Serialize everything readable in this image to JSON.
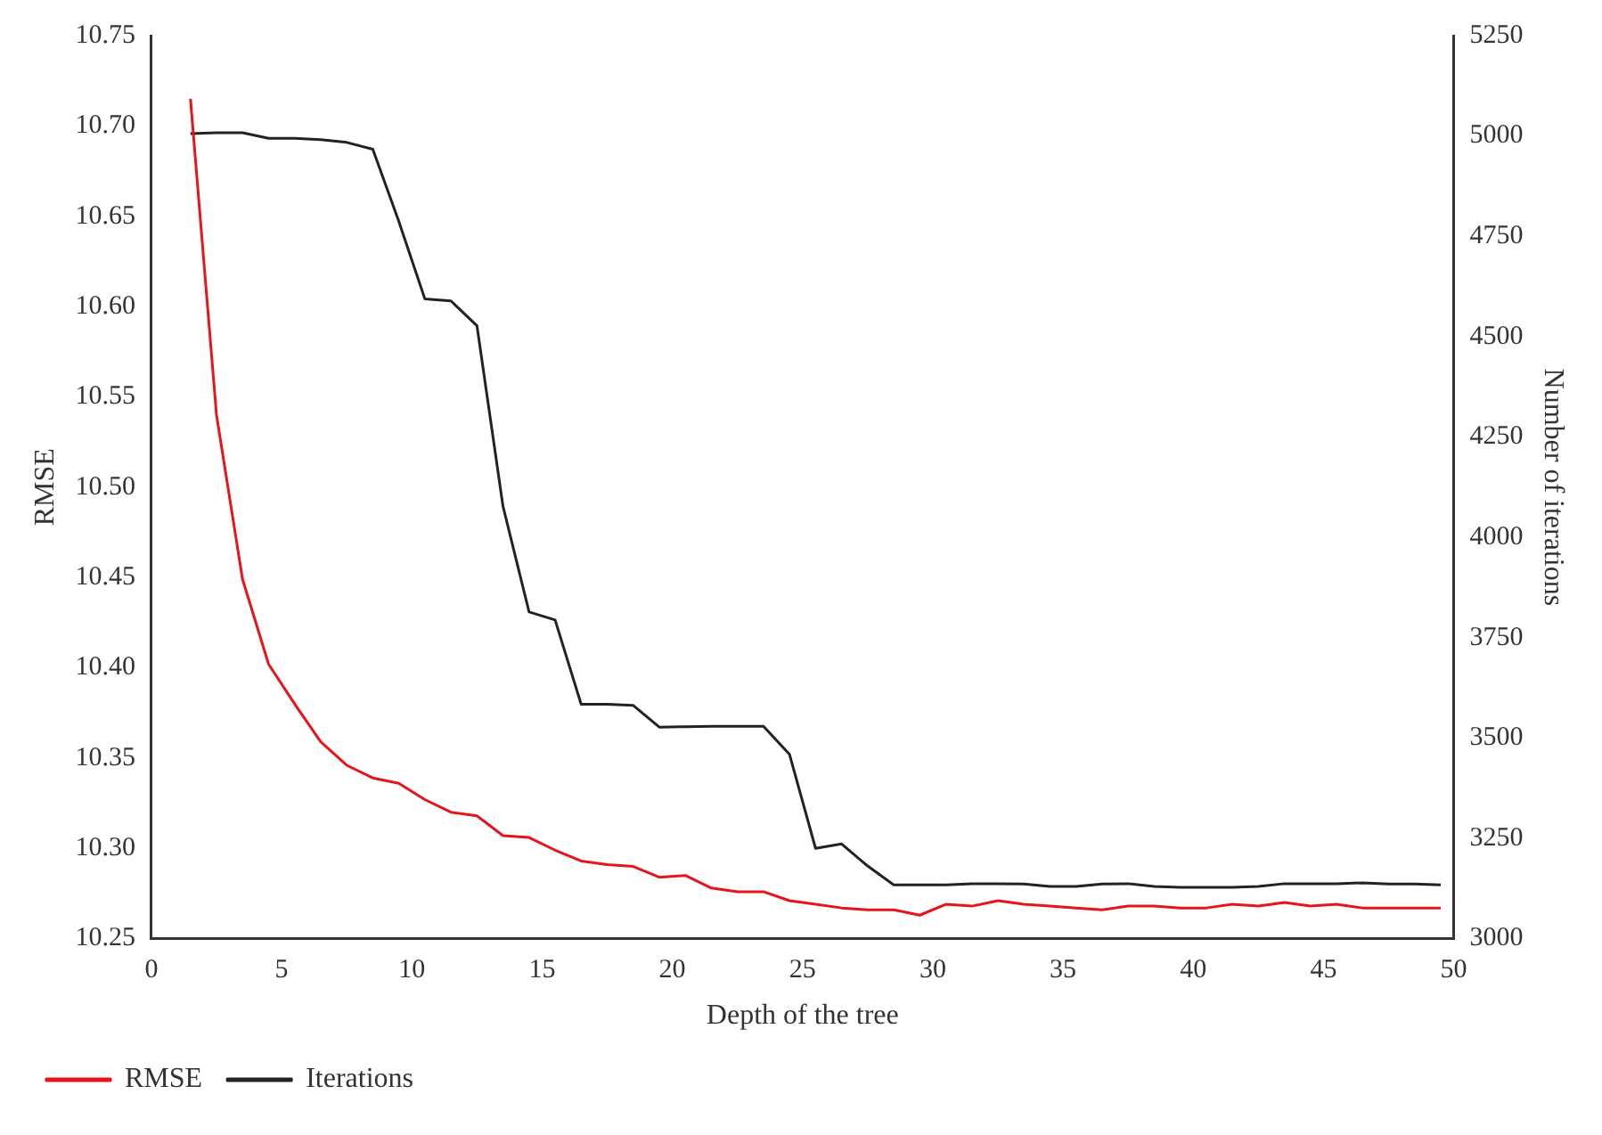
{
  "chart_data": {
    "type": "line",
    "xlabel": "Depth of the tree",
    "ylabel": "RMSE",
    "y2label": "Number of iterations",
    "x": [
      1.5,
      2.5,
      3.5,
      4.5,
      5.5,
      6.5,
      7.5,
      8.5,
      9.5,
      10.5,
      11.5,
      12.5,
      13.5,
      14.5,
      15.5,
      16.5,
      17.5,
      18.5,
      19.5,
      20.5,
      21.5,
      22.5,
      23.5,
      24.5,
      25.5,
      26.5,
      27.5,
      28.5,
      29.5,
      30.5,
      31.5,
      32.5,
      33.5,
      34.5,
      35.5,
      36.5,
      37.5,
      38.5,
      39.5,
      40.5,
      41.5,
      42.5,
      43.5,
      44.5,
      45.5,
      46.5,
      47.5,
      48.5,
      49.5
    ],
    "series": [
      {
        "name": "RMSE",
        "color": "#e8141c",
        "values": [
          10.715,
          10.54,
          10.449,
          10.402,
          10.38,
          10.359,
          10.346,
          10.339,
          10.336,
          10.327,
          10.32,
          10.318,
          10.307,
          10.306,
          10.299,
          10.293,
          10.291,
          10.29,
          10.284,
          10.285,
          10.278,
          10.276,
          10.276,
          10.271,
          10.269,
          10.267,
          10.266,
          10.266,
          10.263,
          10.269,
          10.268,
          10.271,
          10.269,
          10.268,
          10.267,
          10.266,
          10.268,
          10.268,
          10.267,
          10.267,
          10.269,
          10.268,
          10.27,
          10.268,
          10.269,
          10.267,
          10.267,
          10.267,
          10.267
        ]
      },
      {
        "name": "Iterations",
        "color": "#222222",
        "axis": "y2",
        "values": [
          5006,
          5008,
          5008,
          4994,
          4994,
          4991,
          4984,
          4967,
          4787,
          4594,
          4589,
          4527,
          4077,
          3814,
          3794,
          3584,
          3584,
          3581,
          3527,
          3528,
          3529,
          3529,
          3529,
          3459,
          3225,
          3236,
          3181,
          3134,
          3134,
          3134,
          3137,
          3137,
          3136,
          3130,
          3130,
          3136,
          3137,
          3130,
          3128,
          3128,
          3128,
          3130,
          3137,
          3137,
          3137,
          3139,
          3136,
          3136,
          3134
        ]
      }
    ],
    "xlim": [
      0,
      50
    ],
    "xticks": [
      0,
      5,
      10,
      15,
      20,
      25,
      30,
      35,
      40,
      45,
      50
    ],
    "ylim": [
      10.25,
      10.75
    ],
    "yticks": [
      10.25,
      {
        "value": 10.3,
        "label": "10.30"
      },
      10.35,
      {
        "value": 10.4,
        "label": "10.40"
      },
      10.45,
      {
        "value": 10.5,
        "label": "10.50"
      },
      10.55,
      {
        "value": 10.6,
        "label": "10.60"
      },
      10.65,
      {
        "value": 10.7,
        "label": "10.70"
      },
      10.75
    ],
    "y2lim": [
      3000,
      5250
    ],
    "y2ticks": [
      3000,
      3250,
      3500,
      3750,
      4000,
      4250,
      4500,
      4750,
      5000,
      5250
    ],
    "grid": false,
    "legend": "bottom left",
    "marker": "none",
    "line_style": "solid"
  }
}
